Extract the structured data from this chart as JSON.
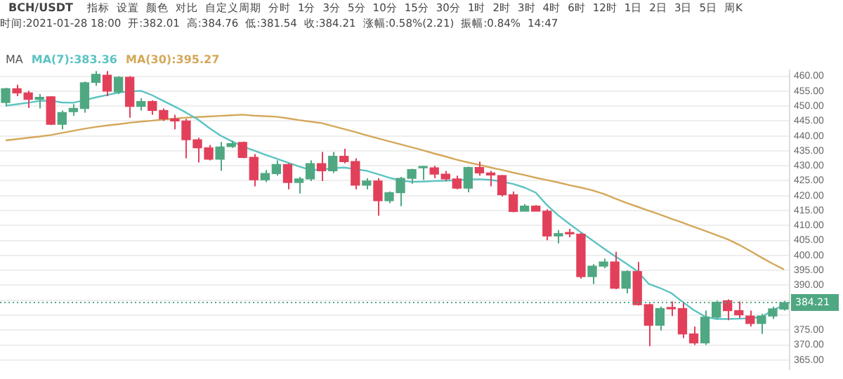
{
  "chart_data": {
    "type": "candlestick",
    "title": "BCH/USDT",
    "annotations": [
      "指标",
      "设置",
      "颜色",
      "对比",
      "自定义周期",
      "分时",
      "1分",
      "3分",
      "5分",
      "10分",
      "15分",
      "30分",
      "1时",
      "2时",
      "3时",
      "4时",
      "6时",
      "12时",
      "1日",
      "2日",
      "3日",
      "5日",
      "周K",
      "时间:2021-01-28 18:00",
      "开:382.01",
      "高:384.76",
      "低:381.54",
      "收:384.21",
      "涨幅:0.58%(2.21)",
      "振幅:0.84%",
      "14:47"
    ],
    "categories": [
      null,
      null,
      null,
      null,
      null,
      null,
      null,
      null,
      null,
      null,
      null,
      null,
      null,
      null,
      null,
      null,
      null,
      null,
      null,
      null,
      null,
      null,
      null,
      null,
      null,
      null,
      null,
      null,
      null,
      null,
      null,
      null,
      null,
      null,
      null,
      null,
      null,
      null,
      null,
      null,
      null,
      null,
      null,
      null,
      null,
      null,
      null,
      null,
      null,
      null,
      null,
      null,
      null,
      null,
      null,
      null,
      null,
      null,
      null,
      null,
      null,
      null,
      null,
      null,
      null,
      null,
      null,
      null,
      null,
      null
    ],
    "ohlc": [
      [
        451.2,
        456.1,
        449.9,
        455.8
      ],
      [
        455.8,
        457.1,
        453.3,
        454.4
      ],
      [
        454.4,
        455.1,
        449.4,
        452.2
      ],
      [
        452.2,
        454.0,
        449.2,
        452.9
      ],
      [
        453.1,
        453.3,
        443.6,
        443.9
      ],
      [
        443.9,
        448.5,
        442.2,
        447.8
      ],
      [
        448.1,
        450.6,
        446.7,
        449.2
      ],
      [
        449.2,
        458.2,
        447.8,
        457.8
      ],
      [
        457.9,
        461.7,
        456.8,
        460.6
      ],
      [
        460.3,
        461.7,
        453.3,
        455.0
      ],
      [
        454.7,
        460.0,
        454.0,
        459.6
      ],
      [
        459.6,
        460.0,
        446.1,
        449.9
      ],
      [
        449.9,
        452.6,
        448.5,
        451.5
      ],
      [
        451.5,
        451.9,
        447.1,
        448.5
      ],
      [
        448.5,
        449.2,
        445.0,
        445.7
      ],
      [
        445.7,
        447.1,
        442.2,
        445.0
      ],
      [
        445.0,
        445.7,
        432.5,
        438.7
      ],
      [
        438.7,
        439.4,
        431.1,
        436.0
      ],
      [
        436.0,
        437.0,
        431.8,
        432.2
      ],
      [
        432.2,
        438.0,
        428.3,
        436.3
      ],
      [
        436.4,
        438.3,
        436.0,
        437.4
      ],
      [
        437.8,
        438.1,
        432.5,
        432.8
      ],
      [
        432.8,
        433.9,
        423.1,
        425.3
      ],
      [
        425.3,
        428.6,
        424.5,
        427.4
      ],
      [
        427.4,
        431.8,
        426.7,
        430.4
      ],
      [
        430.4,
        430.8,
        422.1,
        424.4
      ],
      [
        424.4,
        426.3,
        420.7,
        425.6
      ],
      [
        425.6,
        431.8,
        424.9,
        430.7
      ],
      [
        430.7,
        434.6,
        424.9,
        428.3
      ],
      [
        428.3,
        434.6,
        427.6,
        433.2
      ],
      [
        433.2,
        435.7,
        430.8,
        431.4
      ],
      [
        431.4,
        432.5,
        422.1,
        423.5
      ],
      [
        423.5,
        425.8,
        422.1,
        424.9
      ],
      [
        424.9,
        425.8,
        413.3,
        418.3
      ],
      [
        418.3,
        421.4,
        417.5,
        421.0
      ],
      [
        421.0,
        426.3,
        416.5,
        425.8
      ],
      [
        425.8,
        429.0,
        424.0,
        428.7
      ],
      [
        429.3,
        430.0,
        425.3,
        429.5
      ],
      [
        429.3,
        430.0,
        425.8,
        427.2
      ],
      [
        427.2,
        428.3,
        424.9,
        425.6
      ],
      [
        425.6,
        426.7,
        422.1,
        422.5
      ],
      [
        422.5,
        429.7,
        421.1,
        429.4
      ],
      [
        429.4,
        431.4,
        426.7,
        427.6
      ],
      [
        427.6,
        428.3,
        423.1,
        426.9
      ],
      [
        426.7,
        426.9,
        419.7,
        420.3
      ],
      [
        420.3,
        421.4,
        414.4,
        414.7
      ],
      [
        414.8,
        417.2,
        414.8,
        416.5
      ],
      [
        416.5,
        416.8,
        414.8,
        414.8
      ],
      [
        414.8,
        415.4,
        405.1,
        406.5
      ],
      [
        406.5,
        408.5,
        404.0,
        407.3
      ],
      [
        407.6,
        408.9,
        406.1,
        407.2
      ],
      [
        407.1,
        407.5,
        392.2,
        392.9
      ],
      [
        392.9,
        397.1,
        390.4,
        396.4
      ],
      [
        396.4,
        398.9,
        395.7,
        397.8
      ],
      [
        397.8,
        401.2,
        388.7,
        389.0
      ],
      [
        389.0,
        395.0,
        387.3,
        394.6
      ],
      [
        394.6,
        397.8,
        383.2,
        383.5
      ],
      [
        383.5,
        383.9,
        369.6,
        376.6
      ],
      [
        376.6,
        382.9,
        374.8,
        382.2
      ],
      [
        382.5,
        384.6,
        379.7,
        382.1
      ],
      [
        382.2,
        384.3,
        372.3,
        373.7
      ],
      [
        373.7,
        376.2,
        370.0,
        370.7
      ],
      [
        370.7,
        381.5,
        370.0,
        379.3
      ],
      [
        379.3,
        384.8,
        378.7,
        384.3
      ],
      [
        384.8,
        385.3,
        378.3,
        381.5
      ],
      [
        381.5,
        384.6,
        379.0,
        380.1
      ],
      [
        379.7,
        381.5,
        376.2,
        377.2
      ],
      [
        377.2,
        380.4,
        373.7,
        379.7
      ],
      [
        379.7,
        382.9,
        378.7,
        382.1
      ],
      [
        382.01,
        384.76,
        381.54,
        384.21
      ]
    ],
    "colors": [
      "#4fa882",
      "#e2405a",
      "#e2405a",
      "#4fa882",
      "#e2405a",
      "#4fa882",
      "#4fa882",
      "#4fa882",
      "#4fa882",
      "#e2405a",
      "#4fa882",
      "#e2405a",
      "#4fa882",
      "#e2405a",
      "#e2405a",
      "#e2405a",
      "#e2405a",
      "#e2405a",
      "#e2405a",
      "#4fa882",
      "#4fa882",
      "#e2405a",
      "#e2405a",
      "#4fa882",
      "#4fa882",
      "#e2405a",
      "#4fa882",
      "#4fa882",
      "#e2405a",
      "#4fa882",
      "#e2405a",
      "#e2405a",
      "#4fa882",
      "#e2405a",
      "#4fa882",
      "#4fa882",
      "#4fa882",
      "#4fa882",
      "#e2405a",
      "#e2405a",
      "#e2405a",
      "#4fa882",
      "#e2405a",
      "#e2405a",
      "#e2405a",
      "#e2405a",
      "#4fa882",
      "#e2405a",
      "#e2405a",
      "#4fa882",
      "#e2405a",
      "#e2405a",
      "#4fa882",
      "#4fa882",
      "#e2405a",
      "#4fa882",
      "#e2405a",
      "#e2405a",
      "#4fa882",
      "#e2405a",
      "#e2405a",
      "#e2405a",
      "#4fa882",
      "#4fa882",
      "#e2405a",
      "#e2405a",
      "#e2405a",
      "#4fa882",
      "#4fa882",
      "#4fa882"
    ],
    "series": [
      {
        "type": "line",
        "name": "MA(7):383.36",
        "color": "#5cc3c3",
        "values": [
          450.1,
          450.6,
          451.1,
          451.7,
          451.8,
          451.2,
          451.1,
          452.0,
          452.9,
          453.7,
          454.5,
          454.9,
          455.1,
          453.6,
          451.7,
          449.8,
          447.8,
          445.6,
          442.8,
          440.2,
          438.3,
          436.5,
          435.1,
          433.7,
          432.4,
          431.1,
          429.8,
          428.6,
          428.7,
          429.2,
          429.4,
          428.9,
          428.3,
          427.2,
          426.0,
          425.1,
          424.6,
          424.7,
          424.9,
          425.0,
          425.2,
          425.4,
          425.5,
          425.3,
          424.7,
          423.9,
          422.7,
          421.0,
          416.8,
          413.4,
          410.5,
          407.7,
          405.1,
          402.4,
          399.8,
          397.3,
          394.7,
          390.5,
          389.1,
          387.4,
          384.5,
          381.7,
          379.5,
          378.7,
          378.7,
          378.8,
          378.9,
          379.4,
          381.6,
          383.4
        ]
      },
      {
        "type": "line",
        "name": "MA(30):395.27",
        "color": "#d4a85a",
        "values": [
          438.5,
          438.9,
          439.4,
          439.8,
          440.3,
          441.0,
          441.7,
          442.4,
          443.0,
          443.5,
          443.9,
          444.4,
          444.8,
          445.1,
          445.5,
          445.8,
          446.1,
          446.3,
          446.5,
          446.7,
          446.9,
          447.1,
          446.8,
          446.6,
          446.4,
          445.9,
          445.3,
          444.8,
          444.3,
          443.3,
          442.3,
          441.3,
          440.2,
          439.2,
          438.2,
          437.2,
          436.2,
          435.2,
          434.1,
          433.1,
          432.0,
          431.1,
          430.3,
          429.4,
          428.6,
          427.7,
          426.9,
          426.0,
          425.2,
          424.4,
          423.5,
          422.7,
          421.8,
          420.6,
          419.1,
          417.6,
          416.3,
          415.0,
          413.7,
          412.3,
          411.0,
          409.6,
          408.2,
          406.8,
          405.4,
          403.6,
          401.5,
          399.3,
          397.2,
          395.3
        ]
      }
    ],
    "legend": "top left",
    "legend_title": "MA",
    "marker": "none",
    "ylim": [
      362,
      462
    ],
    "yticks": [
      {
        "value": 365,
        "label": "365.00"
      },
      {
        "value": 370,
        "label": "370.00"
      },
      {
        "value": 375,
        "label": "375.00"
      },
      {
        "value": 380,
        "label": null
      },
      {
        "value": 385,
        "label": null
      },
      {
        "value": 390,
        "label": "390.00"
      },
      {
        "value": 395,
        "label": "395.00"
      },
      {
        "value": 400,
        "label": "400.00"
      },
      {
        "value": 405,
        "label": "405.00"
      },
      {
        "value": 410,
        "label": "410.00"
      },
      {
        "value": 415,
        "label": "415.00"
      },
      {
        "value": 420,
        "label": "420.00"
      },
      {
        "value": 425,
        "label": "425.00"
      },
      {
        "value": 430,
        "label": "430.00"
      },
      {
        "value": 435,
        "label": "435.00"
      },
      {
        "value": 440,
        "label": "440.00"
      },
      {
        "value": 445,
        "label": "445.00"
      },
      {
        "value": 450,
        "label": "450.00"
      },
      {
        "value": 455,
        "label": "455.00"
      },
      {
        "value": 460,
        "label": "460.00"
      }
    ],
    "ref_lines": [
      {
        "axis": "y",
        "value": 384.21,
        "label": "384.21",
        "color": "#4fa882",
        "line_style": "dotted"
      }
    ],
    "grid": "y",
    "tick_labels": "y"
  }
}
